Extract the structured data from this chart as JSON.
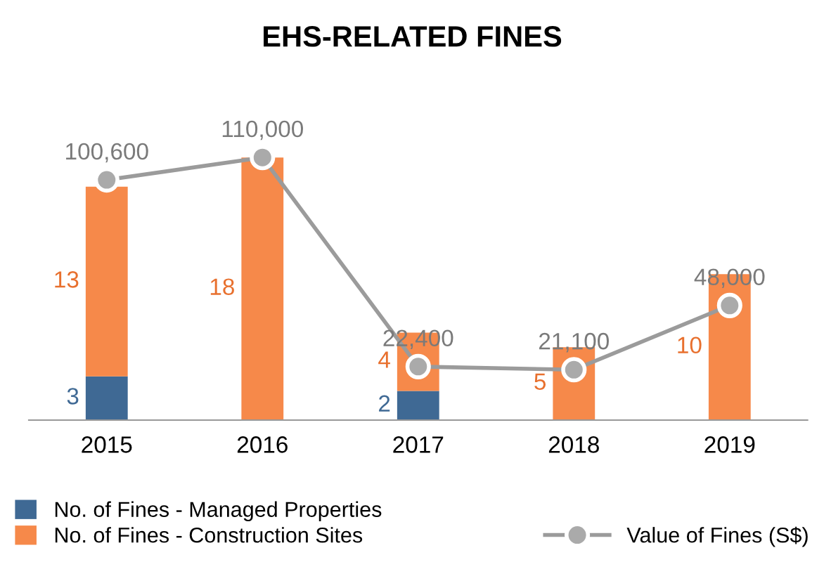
{
  "chart_data": {
    "type": "bar",
    "title": "EHS-RELATED FINES",
    "categories": [
      "2015",
      "2016",
      "2017",
      "2018",
      "2019"
    ],
    "stacked": true,
    "legend": "bottom",
    "grid": false,
    "tick_labels": "x",
    "series": [
      {
        "name": "No. of Fines - Managed Properties",
        "color": "#3f6994",
        "values": [
          3,
          0,
          2,
          0,
          0
        ],
        "value_labels": [
          "3",
          null,
          "2",
          null,
          null
        ]
      },
      {
        "name": "No. of Fines - Construction Sites",
        "color": "#f6894a",
        "values": [
          13,
          18,
          4,
          5,
          10
        ],
        "value_labels": [
          "13",
          "18",
          "4",
          "5",
          "10"
        ]
      },
      {
        "name": "Value of Fines (S$)",
        "type": "line",
        "axis": "y2",
        "color": "#9b9b9b",
        "marker": "circle",
        "values": [
          100600,
          110000,
          22400,
          21100,
          48000
        ],
        "value_labels": [
          "100,600",
          "110,000",
          "22,400",
          "21,100",
          "48,000"
        ]
      }
    ]
  }
}
